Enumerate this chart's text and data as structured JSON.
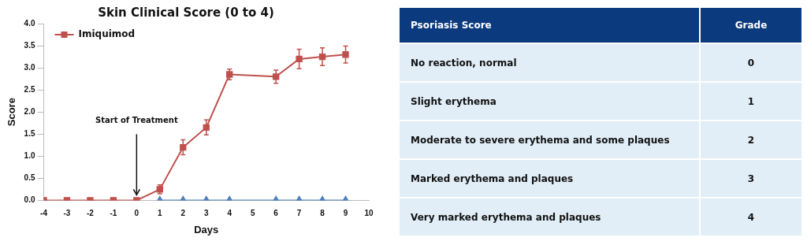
{
  "chart_data": [
    {
      "type": "line",
      "title": "Skin Clinical Score (0 to 4)",
      "xlabel": "Days",
      "ylabel": "Score",
      "xlim": [
        -4,
        10
      ],
      "xticks": [
        -4,
        -3,
        -2,
        -1,
        0,
        1,
        2,
        3,
        4,
        5,
        6,
        7,
        8,
        9,
        10
      ],
      "ylim": [
        0,
        4
      ],
      "yticks": [
        {
          "value": 0,
          "label": "0.0"
        },
        {
          "value": 0.5,
          "label": "0.5"
        },
        {
          "value": 1,
          "label": "1.0"
        },
        {
          "value": 1.5,
          "label": "1.5"
        },
        {
          "value": 2,
          "label": "2.0"
        },
        {
          "value": 2.5,
          "label": "2.5"
        },
        {
          "value": 3,
          "label": "3.0"
        },
        {
          "value": 3.5,
          "label": "3.5"
        },
        {
          "value": 4,
          "label": "4.0"
        }
      ],
      "grid": false,
      "legend": "top left",
      "line_style": "solid",
      "annotations": [
        "Start of Treatment"
      ],
      "series": [
        {
          "color": "#4f81bd",
          "marker": "triangle",
          "x": [
            1,
            2,
            3,
            4,
            6,
            7,
            8,
            9
          ],
          "values": [
            0,
            0,
            0,
            0,
            0,
            0,
            0,
            0
          ]
        },
        {
          "name": "Imiquimod",
          "color": "#c0504d",
          "marker": "square",
          "x": [
            -4,
            -3,
            -2,
            -1,
            0,
            1,
            2,
            3,
            4,
            6,
            7,
            8,
            9
          ],
          "values": [
            0,
            0,
            0,
            0,
            0,
            0.25,
            1.2,
            1.65,
            2.85,
            2.8,
            3.2,
            3.25,
            3.3
          ],
          "errors": [
            null,
            null,
            null,
            null,
            null,
            0.1,
            0.17,
            0.17,
            0.12,
            0.15,
            0.22,
            0.2,
            0.19
          ]
        }
      ]
    },
    {
      "type": "other",
      "annotations": [
        "Psoriasis Score",
        "Grade"
      ],
      "categories": [
        "No reaction, normal",
        "Slight erythema",
        "Moderate to severe erythema and some plaques",
        "Marked erythema and plaques",
        "Very marked erythema and plaques"
      ],
      "values": [
        0,
        1,
        2,
        3,
        4
      ],
      "data_labels": true
    }
  ]
}
